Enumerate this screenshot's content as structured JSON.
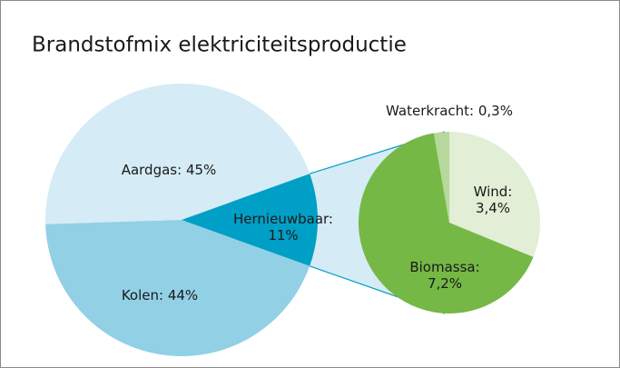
{
  "chart_data": [
    {
      "type": "pie",
      "title": "Brandstofmix elektriciteitsproductie",
      "categories": [
        "Aardgas:",
        "Kolen:",
        "Hernieuwbaar:"
      ],
      "values": [
        45,
        44,
        11
      ],
      "value_labels": [
        "45%",
        "44%",
        "11%"
      ],
      "colors": [
        "#d5ebf5",
        "#92d0e5",
        "#009fc6"
      ]
    },
    {
      "type": "pie",
      "categories": [
        "Wind:",
        "Biomassa:",
        "Waterkracht:"
      ],
      "values": [
        3.4,
        7.2,
        0.3
      ],
      "value_labels": [
        "3,4%",
        "7,2%",
        "0,3%"
      ],
      "colors": [
        "#e2eed5",
        "#75b845",
        "#b6d89a"
      ]
    }
  ]
}
